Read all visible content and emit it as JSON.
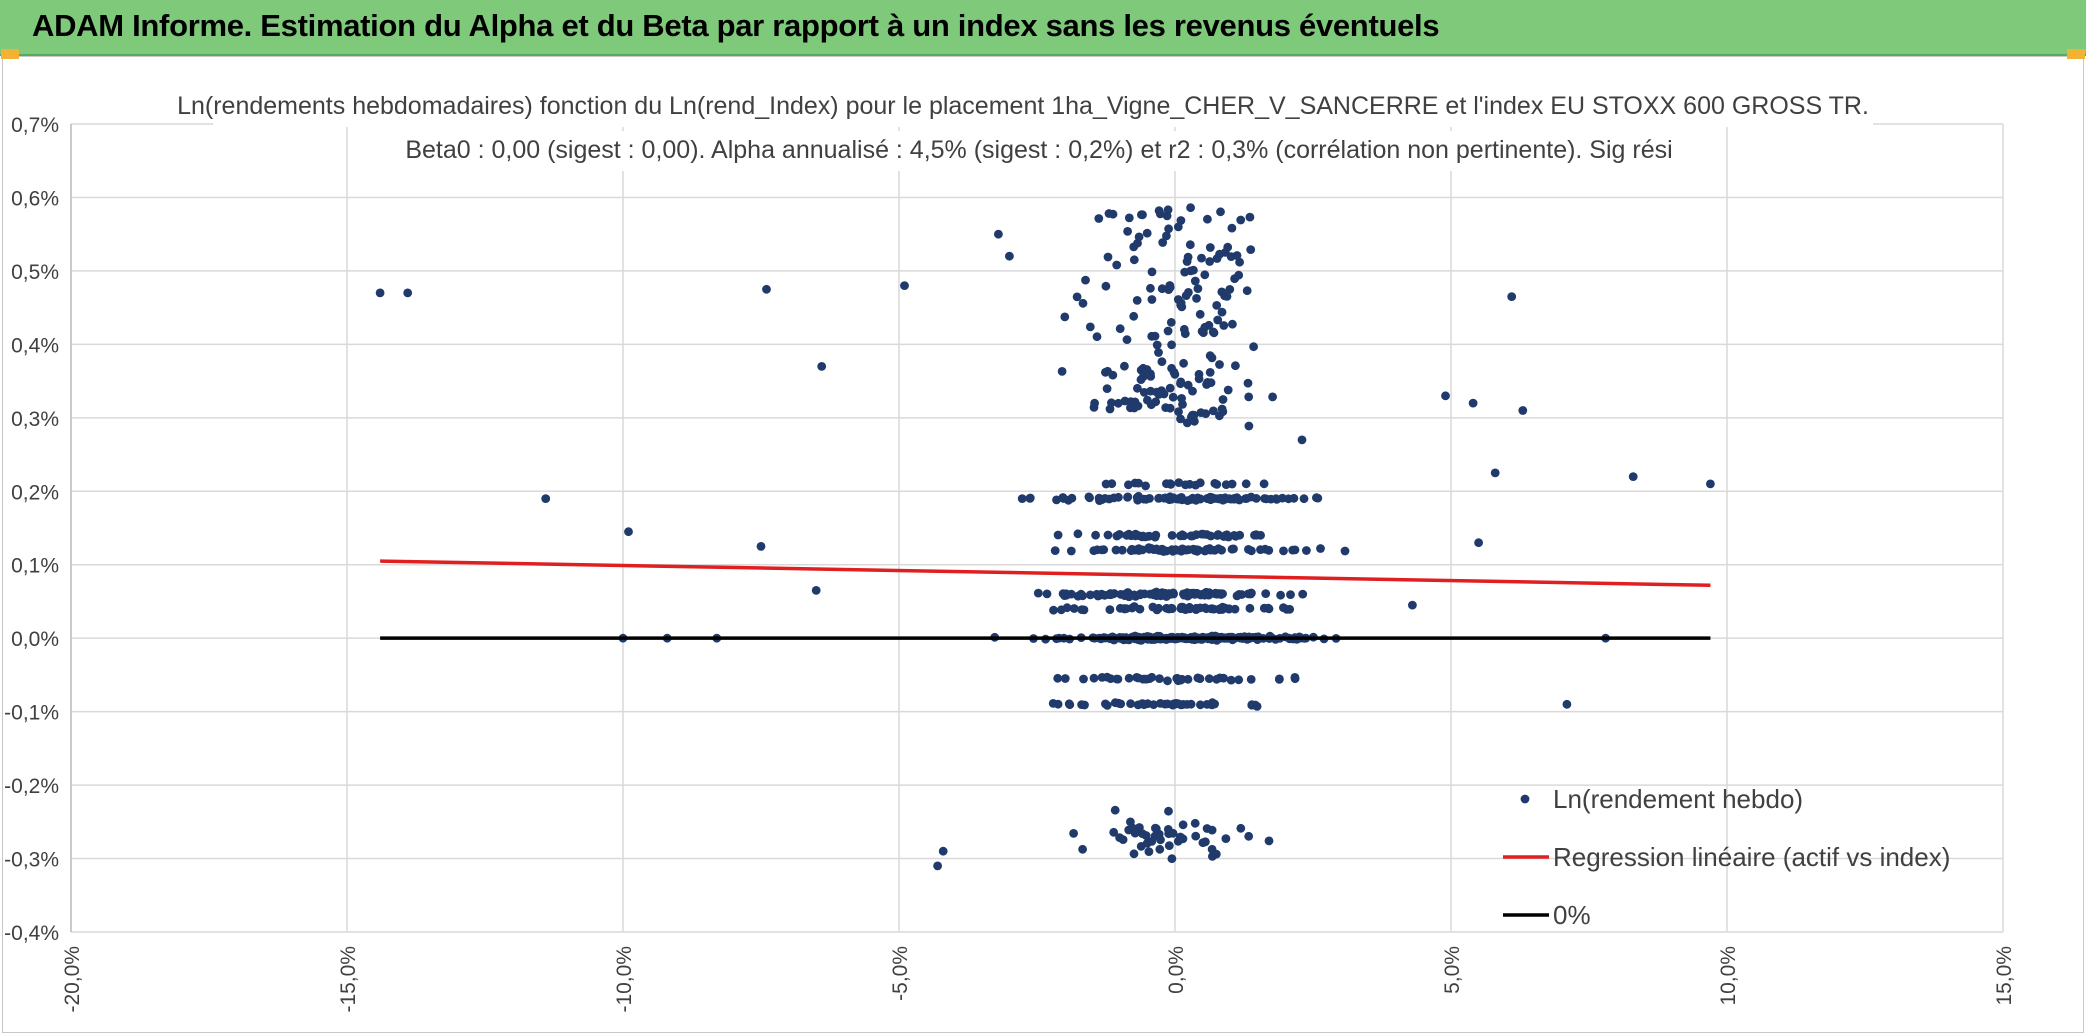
{
  "banner": {
    "title": "ADAM Informe. Estimation du Alpha et du Beta par rapport à un index sans les revenus éventuels"
  },
  "colors": {
    "banner_bg": "#7ec97a",
    "points": "#1f3a6b",
    "regression": "#e02020",
    "zero_line": "#000000",
    "grid": "#d9d9d9"
  },
  "chart_data": {
    "type": "scatter",
    "title": "Ln(rendements hebdomadaires) fonction du Ln(rend_Index) pour le placement 1ha_Vigne_CHER_V_SANCERRE et l'index EU STOXX 600 GROSS TR.",
    "subtitle": "Beta0 : 0,00 (sigest : 0,00). Alpha annualisé : 4,5% (sigest : 0,2%) et r2 : 0,3% (corrélation non pertinente). Sig rési",
    "xlabel": "",
    "ylabel": "",
    "xlim": [
      -0.2,
      0.15
    ],
    "ylim": [
      -0.004,
      0.007
    ],
    "x_ticks": [
      -0.2,
      -0.15,
      -0.1,
      -0.05,
      0.0,
      0.05,
      0.1,
      0.15
    ],
    "x_tick_labels": [
      "-20,0%",
      "-15,0%",
      "-10,0%",
      "-5,0%",
      "0,0%",
      "5,0%",
      "10,0%",
      "15,0%"
    ],
    "y_ticks": [
      -0.004,
      -0.003,
      -0.002,
      -0.001,
      0.0,
      0.001,
      0.002,
      0.003,
      0.004,
      0.005,
      0.006,
      0.007
    ],
    "y_tick_labels": [
      "-0,4%",
      "-0,3%",
      "-0,2%",
      "-0,1%",
      "0,0%",
      "0,1%",
      "0,2%",
      "0,3%",
      "0,4%",
      "0,5%",
      "0,6%",
      "0,7%"
    ],
    "grid": true,
    "legend_position": "bottom-right",
    "series": [
      {
        "name": "Ln(rendement hebdo)",
        "kind": "scatter",
        "color": "#1f3a6b",
        "generated_cloud": {
          "count": 900,
          "seed": 7,
          "x_center": 0.0,
          "x_spread": 0.03,
          "y_levels": [
            -0.0027,
            -0.0009,
            -0.00055,
            0.0,
            0.0004,
            0.0006,
            0.0012,
            0.0014,
            0.0019,
            0.0021,
            0.0032,
            0.0036,
            0.0042,
            0.0047,
            0.0052,
            0.0057
          ],
          "y_weights": [
            6,
            6,
            5,
            30,
            8,
            12,
            10,
            7,
            12,
            6,
            6,
            4,
            5,
            4,
            4,
            3
          ]
        },
        "points": [
          [
            -0.144,
            0.0047
          ],
          [
            -0.139,
            0.0047
          ],
          [
            -0.114,
            0.0019
          ],
          [
            -0.099,
            0.00145
          ],
          [
            -0.074,
            0.00475
          ],
          [
            -0.064,
            0.0037
          ],
          [
            -0.049,
            0.0048
          ],
          [
            -0.032,
            0.0055
          ],
          [
            -0.03,
            0.0052
          ],
          [
            0.049,
            0.0033
          ],
          [
            0.054,
            0.0032
          ],
          [
            0.061,
            0.00465
          ],
          [
            0.063,
            0.0031
          ],
          [
            0.058,
            0.00225
          ],
          [
            0.083,
            0.0022
          ],
          [
            0.097,
            0.0021
          ],
          [
            0.071,
            -0.0009
          ],
          [
            0.078,
            0.0
          ],
          [
            -0.075,
            0.00125
          ],
          [
            -0.065,
            0.00065
          ],
          [
            -0.043,
            -0.0031
          ],
          [
            -0.042,
            -0.0029
          ],
          [
            0.023,
            0.0027
          ],
          [
            0.043,
            0.00045
          ],
          [
            -0.083,
            0.0
          ],
          [
            -0.092,
            0.0
          ],
          [
            -0.1,
            0.0
          ],
          [
            0.055,
            0.0013
          ]
        ]
      },
      {
        "name": "Regression linéaire (actif vs index)",
        "kind": "line",
        "color": "#e02020",
        "x": [
          -0.144,
          0.097
        ],
        "y": [
          0.00105,
          0.00072
        ]
      },
      {
        "name": "0%",
        "kind": "line",
        "color": "#000000",
        "x": [
          -0.144,
          0.097
        ],
        "y": [
          0.0,
          0.0
        ]
      }
    ]
  }
}
